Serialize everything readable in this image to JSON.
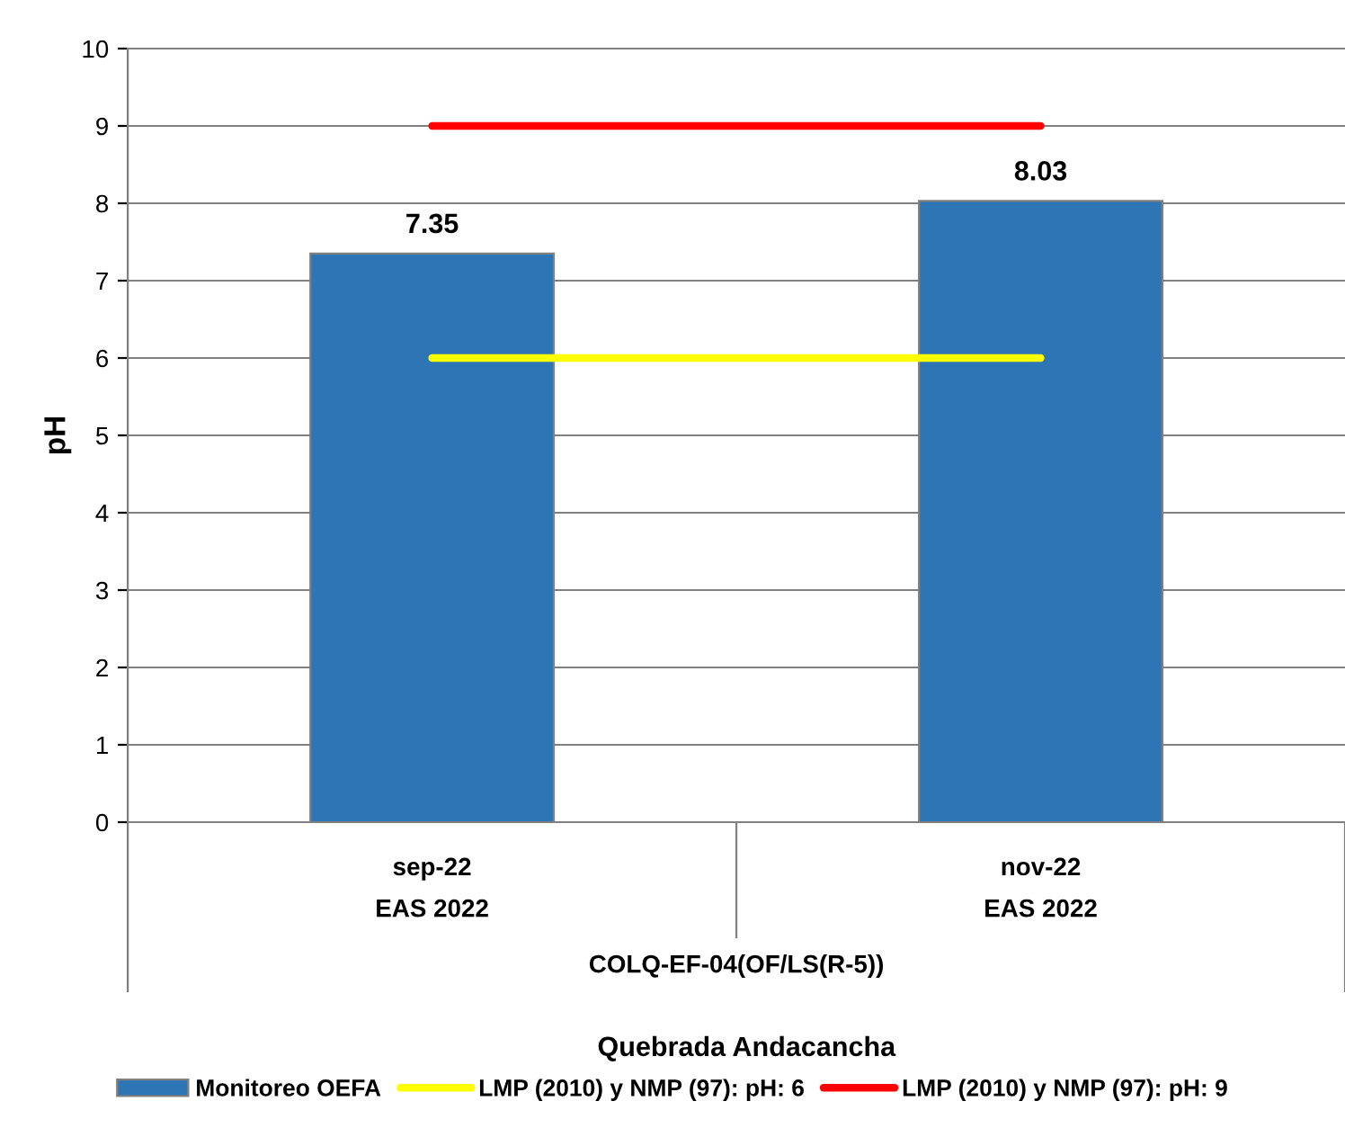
{
  "chart_data": {
    "type": "bar",
    "ylabel": "pH",
    "categories": [
      "sep-22",
      "nov-22"
    ],
    "series": [
      {
        "name": "Monitoreo OEFA",
        "color": "#2e75b6",
        "values": [
          7.35,
          8.03
        ],
        "value_labels": [
          "7.35",
          "8.03"
        ]
      },
      {
        "name": "LMP (2010) y NMP (97): pH: 6",
        "type": "line",
        "color": "#ffff00",
        "values": [
          6,
          6
        ]
      },
      {
        "name": "LMP (2010) y NMP (97): pH: 9",
        "type": "line",
        "color": "#ff0000",
        "values": [
          9,
          9
        ]
      }
    ],
    "annotations": [
      "EAS 2022",
      "EAS 2022",
      "COLQ-EF-04(OF/LS(R-5))",
      "Quebrada Andacancha"
    ],
    "ylim": [
      0,
      10
    ],
    "yticks": [
      0,
      1,
      2,
      3,
      4,
      5,
      6,
      7,
      8,
      9,
      10
    ],
    "grid": "y",
    "legend": "bottom"
  }
}
